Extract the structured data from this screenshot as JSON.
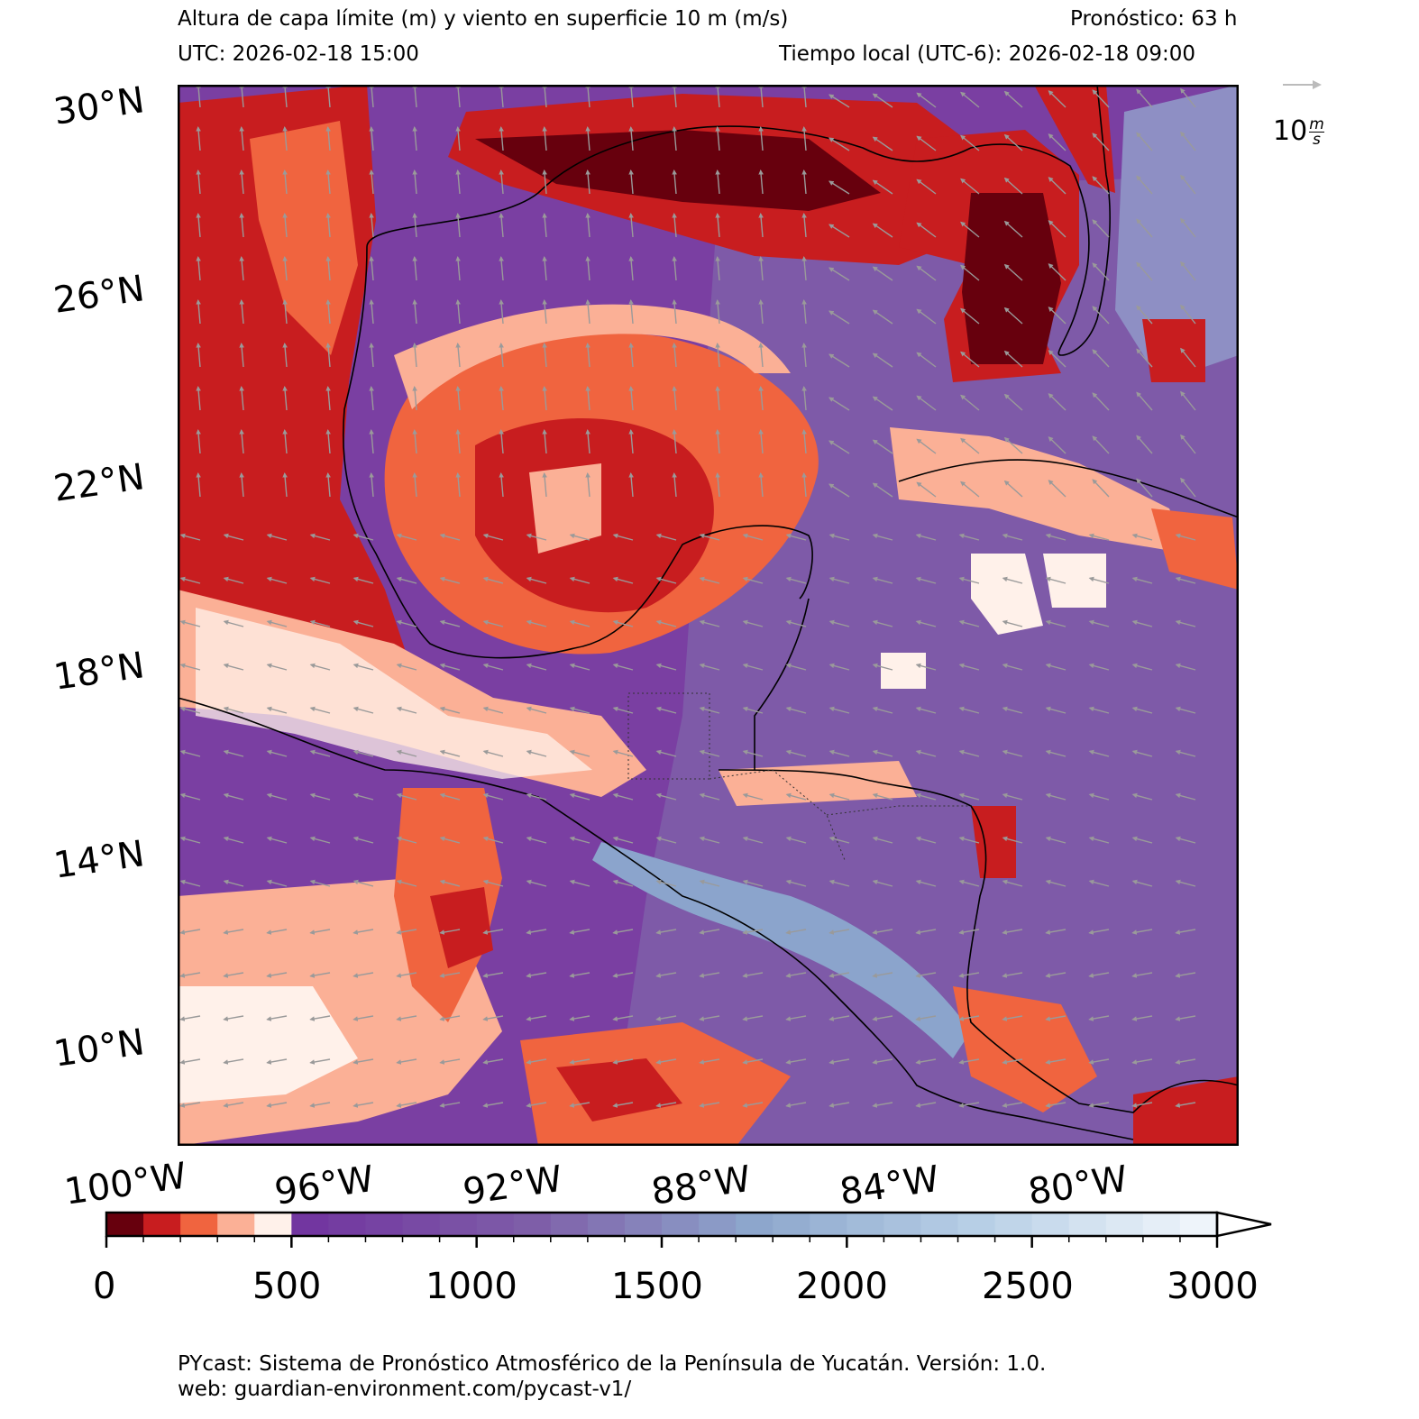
{
  "header": {
    "title": "Altura de capa límite (m) y viento en superficie 10 m (m/s)",
    "forecast": "Pronóstico: 63 h",
    "utc": "UTC:  2026-02-18 15:00",
    "local": "Tiempo local (UTC-6): 2026-02-18 09:00"
  },
  "map": {
    "lat_labels": [
      "30°N",
      "26°N",
      "22°N",
      "18°N",
      "14°N",
      "10°N"
    ],
    "lon_labels": [
      "100°W",
      "96°W",
      "92°W",
      "88°W",
      "84°W",
      "80°W"
    ],
    "extent": {
      "lon_min": -100,
      "lon_max": -77.5,
      "lat_min": 7.5,
      "lat_max": 30
    },
    "wind_reference": {
      "value": "10",
      "units_num": "m",
      "units_den": "s"
    }
  },
  "colorbar": {
    "tick_labels": [
      "0",
      "500",
      "1000",
      "1500",
      "2000",
      "2500",
      "3000"
    ],
    "levels_start": 0,
    "levels_step": 100,
    "levels_end": 3000,
    "extend": "max",
    "colors": {
      "c0": "#67000d",
      "c1": "#c81d1f",
      "c2": "#f0643f",
      "c3": "#fbb096",
      "c4": "#fff1ea",
      "purple_dark": "#7236a0",
      "purple_mid": "#7e5ea8",
      "blue_mid": "#8da6cc",
      "blue_light": "#b7cfe6",
      "near_white": "#eef4fa"
    }
  },
  "footer": {
    "line1": "PYcast: Sistema de Pronóstico Atmosférico de la Península de Yucatán. Versión: 1.0.",
    "line2": "web: guardian-environment.com/pycast-v1/"
  }
}
